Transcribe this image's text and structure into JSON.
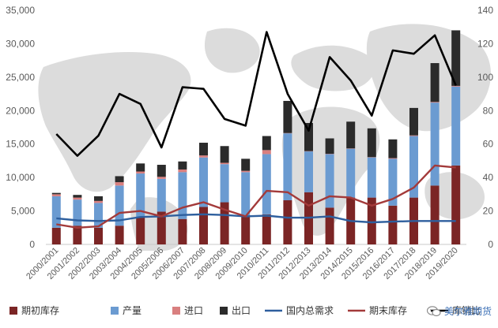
{
  "chart_data": {
    "type": "bar",
    "categories": [
      "2000/2001",
      "2001/2002",
      "2002/2003",
      "2003/2004",
      "2004/2005",
      "2005/2006",
      "2006/2007",
      "2007/2008",
      "2008/2009",
      "2009/2010",
      "2010/2011",
      "2011/2012",
      "2012/2013",
      "2013/2014",
      "2014/2015",
      "2015/2016",
      "2016/2017",
      "2017/2018",
      "2018/2019",
      "2019/2020"
    ],
    "ylim_left": [
      0,
      35000
    ],
    "yticks_left": [
      0,
      5000,
      10000,
      15000,
      20000,
      25000,
      30000,
      35000
    ],
    "ylim_right": [
      0,
      140
    ],
    "yticks_right": [
      0,
      20,
      40,
      60,
      80,
      100,
      120,
      140
    ],
    "stacked": true,
    "bar_series": [
      {
        "name": "期初库存",
        "color": "#7b2525",
        "values": [
          2500,
          2800,
          2500,
          2800,
          4000,
          4900,
          3800,
          5600,
          6300,
          4300,
          4500,
          6600,
          7800,
          5500,
          7000,
          7000,
          5800,
          7000,
          8800,
          11800
        ]
      },
      {
        "name": "产量",
        "color": "#6b9bd1",
        "values": [
          4700,
          3900,
          3700,
          6000,
          6600,
          4900,
          7000,
          7400,
          5700,
          6500,
          9000,
          10000,
          6100,
          8000,
          7300,
          6000,
          7000,
          9200,
          12400,
          11800
        ]
      },
      {
        "name": "进口",
        "color": "#d97f7f",
        "values": [
          300,
          300,
          300,
          500,
          300,
          300,
          400,
          300,
          200,
          200,
          600,
          50,
          50,
          50,
          50,
          50,
          100,
          100,
          100,
          100
        ]
      },
      {
        "name": "出口",
        "color": "#2b2b2b",
        "values": [
          200,
          400,
          700,
          900,
          1200,
          1800,
          1200,
          1900,
          2500,
          1800,
          2100,
          4800,
          4200,
          2300,
          4000,
          4300,
          2800,
          4100,
          5800,
          8300
        ]
      }
    ],
    "line_series": [
      {
        "name": "国内总需求",
        "color": "#2e5f9e",
        "axis": "left",
        "values": [
          3900,
          3600,
          3500,
          3600,
          4100,
          4200,
          4400,
          4500,
          4400,
          4200,
          4300,
          4000,
          4000,
          4200,
          3500,
          3300,
          3400,
          3500,
          3500,
          3500
        ]
      },
      {
        "name": "期末库存",
        "color": "#a33a3a",
        "axis": "left",
        "values": [
          3000,
          2500,
          2700,
          4700,
          5000,
          4200,
          5500,
          6300,
          5200,
          4200,
          8000,
          7800,
          5800,
          7200,
          7000,
          5800,
          6800,
          8500,
          11800,
          11500
        ]
      },
      {
        "name": "库销比",
        "color": "#000000",
        "axis": "right",
        "values": [
          66,
          53,
          65,
          90,
          84,
          58,
          94,
          93,
          75,
          71,
          127,
          90,
          68,
          112,
          98,
          77,
          116,
          114,
          125,
          95
        ]
      }
    ],
    "legend": {
      "items": [
        {
          "label": "期初库存",
          "kind": "box",
          "color": "#7b2525"
        },
        {
          "label": "产量",
          "kind": "box",
          "color": "#6b9bd1"
        },
        {
          "label": "进口",
          "kind": "box",
          "color": "#d97f7f"
        },
        {
          "label": "出口",
          "kind": "box",
          "color": "#2b2b2b"
        },
        {
          "label": "国内总需求",
          "kind": "line",
          "color": "#2e5f9e"
        },
        {
          "label": "期末库存",
          "kind": "line",
          "color": "#a33a3a"
        },
        {
          "label": "库销比",
          "kind": "line",
          "color": "#000000"
        }
      ],
      "placement": "bottom"
    },
    "grid": false,
    "axis_color": "#c8c8c8",
    "tick_color": "#595959"
  },
  "watermark": {
    "text": "美尔雅期货",
    "icon": "wechat-icon",
    "color": "#3b6fb5"
  }
}
